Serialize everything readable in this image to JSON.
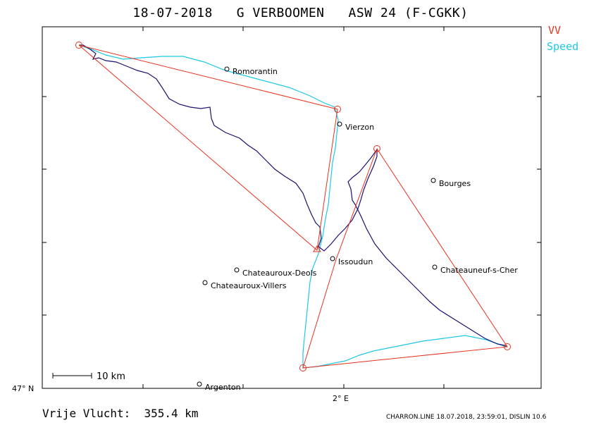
{
  "title": "18-07-2018   G VERBOOMEN   ASW 24 (F-CGKK)",
  "legend": {
    "vv": {
      "label": "VV",
      "color": "#e8321e"
    },
    "speed": {
      "label": "Speed",
      "color": "#1ec8e6"
    }
  },
  "colors": {
    "track": "#1c1070",
    "task": "#e8321e",
    "speed": "#1ec8e6"
  },
  "axes": {
    "y_label": "47° N",
    "x_label": "2° E"
  },
  "scale_bar": {
    "label": "10 km"
  },
  "footer": {
    "distance_text": "Vrije Vlucht:  355.4 km",
    "info_text": "CHARRON.LINE 18.07.2018, 23:59:01, DISLIN 10.6"
  },
  "cities": [
    {
      "name": "Romorantin",
      "id": "romorantin"
    },
    {
      "name": "Vierzon",
      "id": "vierzon"
    },
    {
      "name": "Bourges",
      "id": "bourges"
    },
    {
      "name": "Issoudun",
      "id": "issoudun"
    },
    {
      "name": "Chateauroux-Deols",
      "id": "chateauroux-deols"
    },
    {
      "name": "Chateauroux-Villers",
      "id": "chateauroux-villers"
    },
    {
      "name": "Chateauneuf-s-Cher",
      "id": "chateauneuf"
    },
    {
      "name": "Argenton",
      "id": "argenton"
    }
  ]
}
